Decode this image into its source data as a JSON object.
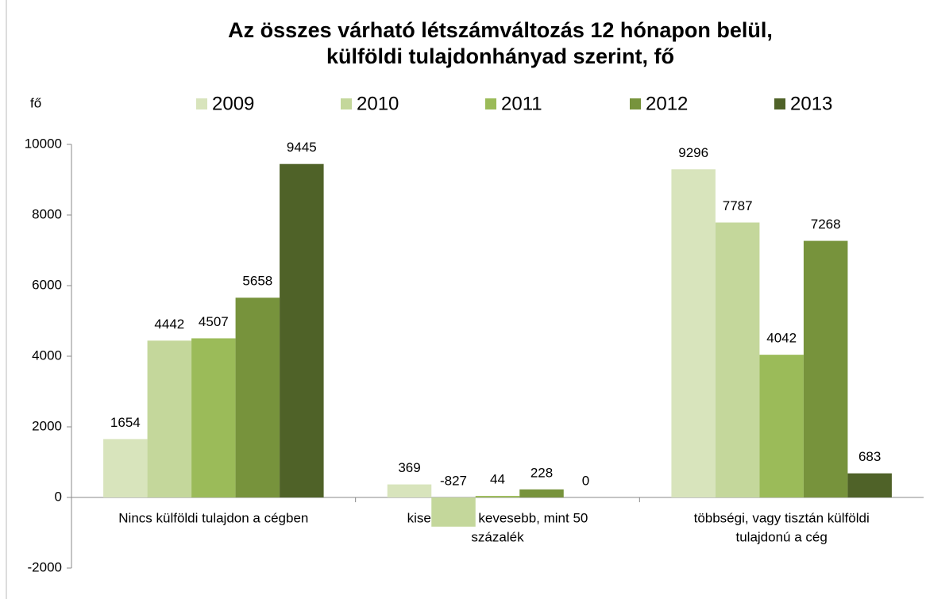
{
  "chart_data": {
    "type": "bar",
    "title": [
      "Az összes  várható létszámváltozás 12 hónapon belül,",
      "külföldi tulajdonhányad  szerint, fő"
    ],
    "y_label": "fő",
    "categories": [
      "Nincs külföldi tulajdon a cégben",
      "kisebbségi: kevesebb, mint 50 százalék",
      "többségi, vagy tisztán külföldi tulajdonú a cég"
    ],
    "category_lines": [
      [
        "Nincs külföldi tulajdon a cégben"
      ],
      [
        "kisebbségi: kevesebb, mint 50",
        "százalék"
      ],
      [
        "többségi, vagy tisztán külföldi",
        "tulajdonú a cég"
      ]
    ],
    "series": [
      {
        "name": "2009",
        "color": "#d8e4bc",
        "values": [
          1654,
          369,
          9296
        ]
      },
      {
        "name": "2010",
        "color": "#c4d79b",
        "values": [
          4442,
          -827,
          7787
        ]
      },
      {
        "name": "2011",
        "color": "#9bbb59",
        "values": [
          4507,
          44,
          4042
        ]
      },
      {
        "name": "2012",
        "color": "#77933c",
        "values": [
          5658,
          228,
          7268
        ]
      },
      {
        "name": "2013",
        "color": "#4f6228",
        "values": [
          9445,
          0,
          683
        ]
      }
    ],
    "ylim": [
      -2000,
      10000
    ],
    "yticks": [
      -2000,
      0,
      2000,
      4000,
      6000,
      8000,
      10000
    ],
    "legend": "top"
  }
}
